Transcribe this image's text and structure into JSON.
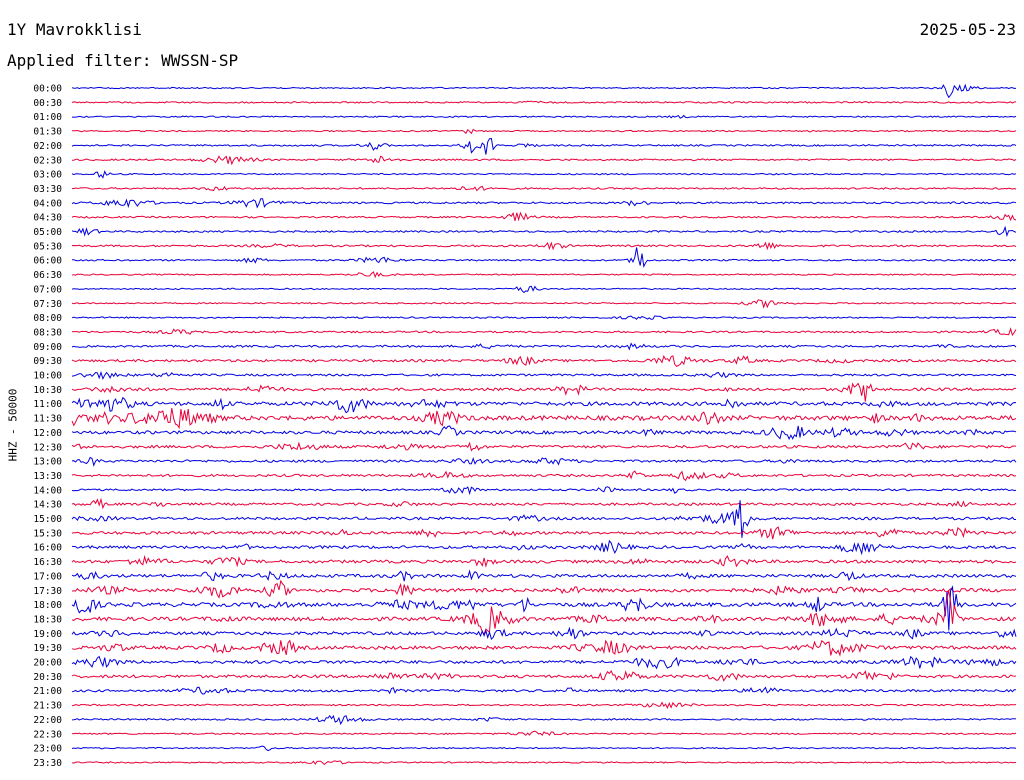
{
  "header": {
    "station": "1Y Mavrokklisi",
    "date": "2025-05-23",
    "filter": "Applied filter: WWSSN-SP"
  },
  "chart_data": {
    "type": "line",
    "ylabel": "HHZ - 50000",
    "colors": {
      "even_row": "#0000e0",
      "odd_row": "#e8003a"
    },
    "rows": [
      "00:00",
      "00:30",
      "01:00",
      "01:30",
      "02:00",
      "02:30",
      "03:00",
      "03:30",
      "04:00",
      "04:30",
      "05:00",
      "05:30",
      "06:00",
      "06:30",
      "07:00",
      "07:30",
      "08:00",
      "08:30",
      "09:00",
      "09:30",
      "10:00",
      "10:30",
      "11:00",
      "11:30",
      "12:00",
      "12:30",
      "13:00",
      "13:30",
      "14:00",
      "14:30",
      "15:00",
      "15:30",
      "16:00",
      "16:30",
      "17:00",
      "17:30",
      "18:00",
      "18:30",
      "19:00",
      "19:30",
      "20:00",
      "20:30",
      "21:00",
      "21:30",
      "22:00",
      "22:30",
      "23:00",
      "23:30"
    ],
    "activity": [
      0.06,
      0.1,
      0.05,
      0.05,
      0.12,
      0.14,
      0.05,
      0.12,
      0.18,
      0.14,
      0.16,
      0.18,
      0.12,
      0.05,
      0.04,
      0.06,
      0.08,
      0.16,
      0.22,
      0.3,
      0.24,
      0.38,
      0.62,
      0.82,
      0.5,
      0.38,
      0.3,
      0.3,
      0.18,
      0.32,
      0.36,
      0.42,
      0.42,
      0.46,
      0.48,
      0.58,
      0.66,
      0.62,
      0.48,
      0.55,
      0.45,
      0.42,
      0.28,
      0.1,
      0.12,
      0.08,
      0.05,
      0.05
    ],
    "events": [
      {
        "row": "00:00",
        "t": 0.93,
        "amp": 1.2
      },
      {
        "row": "02:00",
        "t": 0.42,
        "amp": 1.0
      },
      {
        "row": "02:00",
        "t": 0.44,
        "amp": 1.4
      },
      {
        "row": "06:00",
        "t": 0.6,
        "amp": 2.0
      },
      {
        "row": "10:30",
        "t": 0.84,
        "amp": 1.0
      },
      {
        "row": "15:00",
        "t": 0.71,
        "amp": 1.6
      },
      {
        "row": "18:00",
        "t": 0.93,
        "amp": 2.2
      },
      {
        "row": "18:30",
        "t": 0.93,
        "amp": 1.8
      }
    ]
  }
}
